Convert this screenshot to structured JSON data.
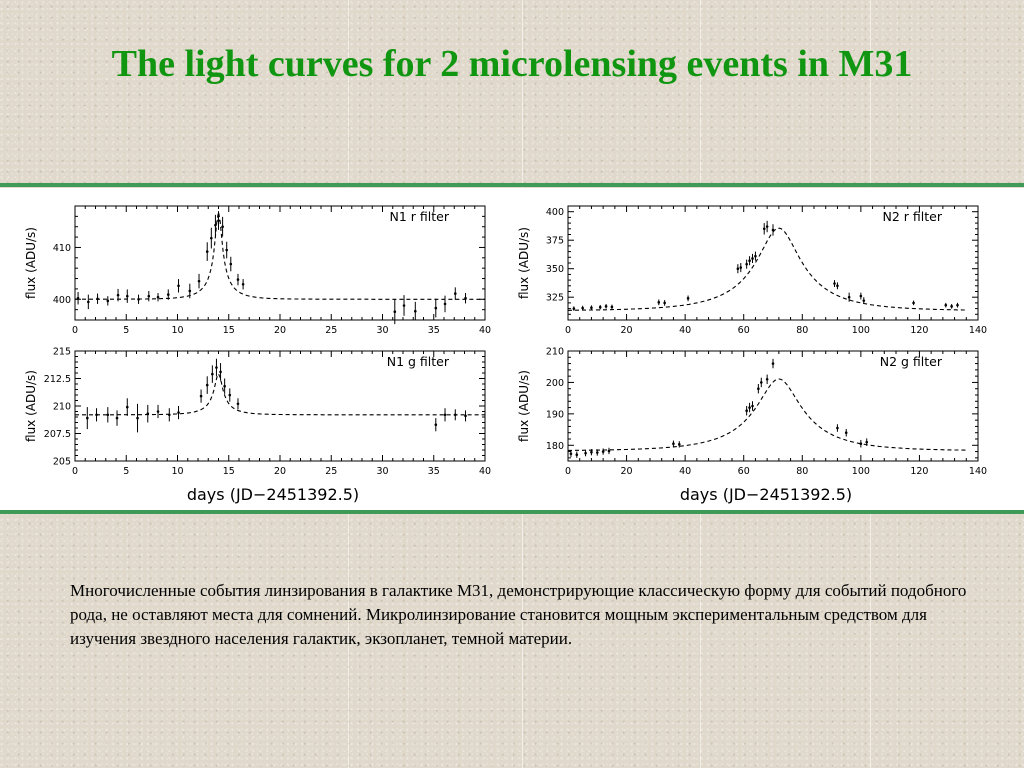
{
  "title": "The light curves for 2 microlensing events in M31",
  "caption": "Многочисленные события линзирования в галактике M31, демонстрирующие классическую форму для событий подобного рода, не оставляют места для сомнений. Микролинзирование становится мощным экспериментальным средством для изучения звездного населения галактик, экзопланет, темной материи.",
  "xlabel": "days (JD−2451392.5)",
  "colors": {
    "title": "#119611",
    "rule": "#3f9a57",
    "background": "#dfd8cb",
    "ink": "#000000"
  },
  "chart_data": [
    {
      "type": "scatter",
      "title": "N1  r filter",
      "ylabel": "flux (ADU/s)",
      "xlim": [
        0,
        40
      ],
      "ylim": [
        396,
        418
      ],
      "xticks": [
        0,
        5,
        10,
        15,
        20,
        25,
        30,
        35,
        40
      ],
      "yticks": [
        400,
        410
      ],
      "model": {
        "t0": 14,
        "u0": 0.13,
        "tE": 2.6,
        "fs": 2.5,
        "fb": 397.5
      },
      "points": [
        {
          "x": 0.3,
          "y": 400.2,
          "e": 1.2
        },
        {
          "x": 1.3,
          "y": 399.5,
          "e": 1.4
        },
        {
          "x": 2.2,
          "y": 400.1,
          "e": 1.0
        },
        {
          "x": 3.2,
          "y": 399.7,
          "e": 0.9
        },
        {
          "x": 4.2,
          "y": 400.8,
          "e": 1.2
        },
        {
          "x": 5.1,
          "y": 400.6,
          "e": 1.3
        },
        {
          "x": 6.2,
          "y": 400.0,
          "e": 0.9
        },
        {
          "x": 7.2,
          "y": 400.6,
          "e": 1.0
        },
        {
          "x": 8.1,
          "y": 400.4,
          "e": 0.8
        },
        {
          "x": 9.1,
          "y": 400.9,
          "e": 1.0
        },
        {
          "x": 10.1,
          "y": 402.6,
          "e": 1.3
        },
        {
          "x": 11.2,
          "y": 401.6,
          "e": 1.4
        },
        {
          "x": 12.1,
          "y": 403.5,
          "e": 1.4
        },
        {
          "x": 12.9,
          "y": 409.2,
          "e": 1.8
        },
        {
          "x": 13.3,
          "y": 411.8,
          "e": 2.0
        },
        {
          "x": 13.7,
          "y": 414.3,
          "e": 2.0
        },
        {
          "x": 14.0,
          "y": 415.2,
          "e": 1.8
        },
        {
          "x": 14.4,
          "y": 414.0,
          "e": 1.9
        },
        {
          "x": 14.8,
          "y": 409.5,
          "e": 1.6
        },
        {
          "x": 15.2,
          "y": 406.8,
          "e": 1.4
        },
        {
          "x": 15.9,
          "y": 403.8,
          "e": 1.1
        },
        {
          "x": 16.4,
          "y": 402.9,
          "e": 1.0
        },
        {
          "x": 31.2,
          "y": 397.6,
          "e": 2.4
        },
        {
          "x": 32.1,
          "y": 398.8,
          "e": 2.0
        },
        {
          "x": 33.2,
          "y": 397.7,
          "e": 1.8
        },
        {
          "x": 35.2,
          "y": 398.3,
          "e": 1.8
        },
        {
          "x": 36.1,
          "y": 399.1,
          "e": 1.6
        },
        {
          "x": 37.1,
          "y": 401.1,
          "e": 1.2
        },
        {
          "x": 38.1,
          "y": 400.2,
          "e": 1.0
        }
      ]
    },
    {
      "type": "scatter",
      "title": "N2  r filter",
      "ylabel": "flux (ADU/s)",
      "xlim": [
        0,
        140
      ],
      "ylim": [
        305,
        405
      ],
      "xticks": [
        0,
        20,
        40,
        60,
        80,
        100,
        120,
        140
      ],
      "yticks": [
        325,
        350,
        375,
        400
      ],
      "model": {
        "t0": 72,
        "u0": 0.31,
        "tE": 24,
        "fs": 31,
        "fb": 282
      },
      "points": [
        {
          "x": 2,
          "y": 315,
          "e": 2
        },
        {
          "x": 5,
          "y": 315.5,
          "e": 2
        },
        {
          "x": 8,
          "y": 315.8,
          "e": 2
        },
        {
          "x": 11,
          "y": 316.2,
          "e": 2
        },
        {
          "x": 13,
          "y": 317,
          "e": 2
        },
        {
          "x": 15,
          "y": 316.5,
          "e": 2
        },
        {
          "x": 31,
          "y": 320.5,
          "e": 2.5
        },
        {
          "x": 33,
          "y": 320,
          "e": 2.5
        },
        {
          "x": 41,
          "y": 324,
          "e": 2.5
        },
        {
          "x": 58,
          "y": 350,
          "e": 4
        },
        {
          "x": 59,
          "y": 351,
          "e": 4
        },
        {
          "x": 61,
          "y": 354,
          "e": 4
        },
        {
          "x": 62,
          "y": 357,
          "e": 4
        },
        {
          "x": 63,
          "y": 359,
          "e": 4
        },
        {
          "x": 64,
          "y": 361,
          "e": 4
        },
        {
          "x": 67,
          "y": 385,
          "e": 5
        },
        {
          "x": 68,
          "y": 387,
          "e": 5
        },
        {
          "x": 70,
          "y": 384,
          "e": 5
        },
        {
          "x": 91,
          "y": 337,
          "e": 3
        },
        {
          "x": 92,
          "y": 335,
          "e": 3
        },
        {
          "x": 96,
          "y": 325,
          "e": 4
        },
        {
          "x": 100,
          "y": 326,
          "e": 3
        },
        {
          "x": 101,
          "y": 322,
          "e": 3
        },
        {
          "x": 118,
          "y": 320,
          "e": 2
        },
        {
          "x": 129,
          "y": 318,
          "e": 2
        },
        {
          "x": 131,
          "y": 317,
          "e": 2
        },
        {
          "x": 133,
          "y": 318,
          "e": 2
        }
      ]
    },
    {
      "type": "scatter",
      "title": "N1  g filter",
      "ylabel": "flux (ADU/s)",
      "xlim": [
        0,
        40
      ],
      "ylim": [
        205,
        215
      ],
      "xticks": [
        0,
        5,
        10,
        15,
        20,
        25,
        30,
        35,
        40
      ],
      "yticks": [
        205,
        207.5,
        210,
        212.5,
        215
      ],
      "yticklabels": [
        "205",
        "207.5",
        "210",
        "212.5",
        "215"
      ],
      "model": {
        "t0": 14,
        "u0": 0.15,
        "tE": 2.6,
        "fs": 0.65,
        "fb": 208.55
      },
      "points": [
        {
          "x": 1.2,
          "y": 208.9,
          "e": 1.0
        },
        {
          "x": 2.1,
          "y": 209.2,
          "e": 0.6
        },
        {
          "x": 3.2,
          "y": 209.2,
          "e": 0.7
        },
        {
          "x": 4.1,
          "y": 208.9,
          "e": 0.7
        },
        {
          "x": 5.1,
          "y": 209.9,
          "e": 0.8
        },
        {
          "x": 6.1,
          "y": 208.9,
          "e": 1.3
        },
        {
          "x": 7.1,
          "y": 209.3,
          "e": 0.8
        },
        {
          "x": 8.1,
          "y": 209.5,
          "e": 0.6
        },
        {
          "x": 9.2,
          "y": 209.2,
          "e": 0.6
        },
        {
          "x": 10.1,
          "y": 209.4,
          "e": 0.6
        },
        {
          "x": 12.3,
          "y": 210.9,
          "e": 0.6
        },
        {
          "x": 12.9,
          "y": 211.9,
          "e": 0.8
        },
        {
          "x": 13.4,
          "y": 212.9,
          "e": 0.8
        },
        {
          "x": 13.8,
          "y": 213.5,
          "e": 0.8
        },
        {
          "x": 14.2,
          "y": 213.1,
          "e": 0.8
        },
        {
          "x": 14.6,
          "y": 211.8,
          "e": 0.7
        },
        {
          "x": 15.1,
          "y": 211.0,
          "e": 0.6
        },
        {
          "x": 15.9,
          "y": 210.2,
          "e": 0.5
        },
        {
          "x": 35.2,
          "y": 208.3,
          "e": 0.6
        },
        {
          "x": 36.1,
          "y": 209.2,
          "e": 0.6
        },
        {
          "x": 37.1,
          "y": 209.2,
          "e": 0.5
        },
        {
          "x": 38.1,
          "y": 209.1,
          "e": 0.5
        }
      ]
    },
    {
      "type": "scatter",
      "title": "N2  g filter",
      "ylabel": "flux (ADU/s)",
      "xlim": [
        0,
        140
      ],
      "ylim": [
        175,
        210
      ],
      "xticks": [
        0,
        20,
        40,
        60,
        80,
        100,
        120,
        140
      ],
      "yticks": [
        180,
        190,
        200,
        210
      ],
      "model": {
        "t0": 72,
        "u0": 0.32,
        "tE": 24,
        "fs": 10.2,
        "fb": 168
      },
      "points": [
        {
          "x": 1,
          "y": 177.3,
          "e": 1
        },
        {
          "x": 3,
          "y": 177,
          "e": 1
        },
        {
          "x": 6,
          "y": 177.5,
          "e": 1
        },
        {
          "x": 8,
          "y": 177.8,
          "e": 1
        },
        {
          "x": 10,
          "y": 177.7,
          "e": 1
        },
        {
          "x": 12,
          "y": 178,
          "e": 1
        },
        {
          "x": 14,
          "y": 178.2,
          "e": 1
        },
        {
          "x": 36,
          "y": 180.5,
          "e": 1
        },
        {
          "x": 38,
          "y": 180.3,
          "e": 1
        },
        {
          "x": 61,
          "y": 191,
          "e": 1.5
        },
        {
          "x": 62,
          "y": 192,
          "e": 1.5
        },
        {
          "x": 63,
          "y": 192.5,
          "e": 1.5
        },
        {
          "x": 65,
          "y": 198,
          "e": 1.5
        },
        {
          "x": 66,
          "y": 200,
          "e": 1.5
        },
        {
          "x": 68,
          "y": 201,
          "e": 1.5
        },
        {
          "x": 70,
          "y": 206,
          "e": 1.5
        },
        {
          "x": 92,
          "y": 185.5,
          "e": 1.2
        },
        {
          "x": 95,
          "y": 184,
          "e": 1.2
        },
        {
          "x": 100,
          "y": 180.5,
          "e": 1.2
        },
        {
          "x": 102,
          "y": 181,
          "e": 1.2
        }
      ]
    }
  ]
}
